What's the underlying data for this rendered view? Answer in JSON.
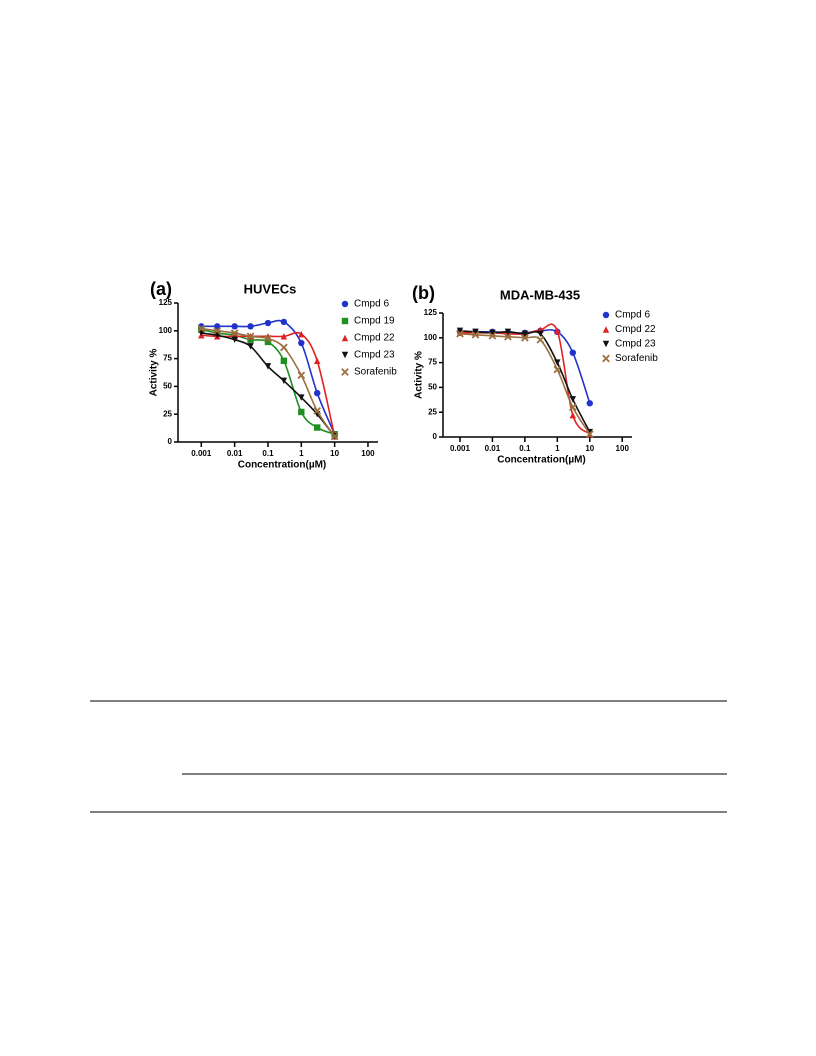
{
  "chart_data": [
    {
      "type": "line",
      "panel": "(a)",
      "title": "HUVECs",
      "x_label": "Concentration(µM)",
      "y_label": "Activity %",
      "x": [
        0.001,
        0.003,
        0.01,
        0.03,
        0.1,
        0.3,
        1,
        3,
        10
      ],
      "xscale": "log",
      "xlim": [
        0.0002,
        200
      ],
      "xticks": [
        0.001,
        0.01,
        0.1,
        1,
        10,
        100
      ],
      "ylim": [
        0,
        125
      ],
      "yticks": [
        0,
        25,
        50,
        75,
        100,
        125
      ],
      "series": [
        {
          "name": "Cmpd 6",
          "color": "#2233cc",
          "values": [
            104,
            104,
            104,
            104,
            107,
            108,
            89,
            44,
            7
          ]
        },
        {
          "name": "Cmpd 19",
          "color": "#1f8f1f",
          "values": [
            101,
            98,
            96,
            92,
            90,
            73,
            27,
            13,
            7
          ]
        },
        {
          "name": "Cmpd 22",
          "color": "#e02222",
          "values": [
            96,
            95,
            95,
            95,
            95,
            95,
            97,
            73,
            5
          ]
        },
        {
          "name": "Cmpd 23",
          "color": "#111111",
          "values": [
            98,
            96,
            92,
            86,
            68,
            55,
            40,
            25,
            5
          ]
        },
        {
          "name": "Sorafenib",
          "color": "#9a7040",
          "values": [
            102,
            100,
            98,
            95,
            93,
            85,
            60,
            28,
            5
          ]
        }
      ]
    },
    {
      "type": "line",
      "panel": "(b)",
      "title": "MDA-MB-435",
      "x_label": "Concentration(µM)",
      "y_label": "Activity %",
      "x": [
        0.001,
        0.003,
        0.01,
        0.03,
        0.1,
        0.3,
        1,
        3,
        10
      ],
      "xscale": "log",
      "xlim": [
        0.0003,
        200
      ],
      "xticks": [
        0.001,
        0.01,
        0.1,
        1,
        10,
        100
      ],
      "ylim": [
        0,
        125
      ],
      "yticks": [
        0,
        25,
        50,
        75,
        100,
        125
      ],
      "series": [
        {
          "name": "Cmpd 6",
          "color": "#2233cc",
          "values": [
            106,
            106,
            106,
            105,
            105,
            107,
            106,
            85,
            34
          ]
        },
        {
          "name": "Cmpd 22",
          "color": "#e02222",
          "values": [
            105,
            105,
            105,
            104,
            104,
            108,
            107,
            22,
            3
          ]
        },
        {
          "name": "Cmpd 23",
          "color": "#111111",
          "values": [
            107,
            106,
            105,
            106,
            104,
            104,
            75,
            38,
            5
          ]
        },
        {
          "name": "Sorafenib",
          "color": "#9a7040",
          "values": [
            104,
            103,
            102,
            101,
            100,
            98,
            68,
            30,
            3
          ]
        }
      ]
    }
  ]
}
